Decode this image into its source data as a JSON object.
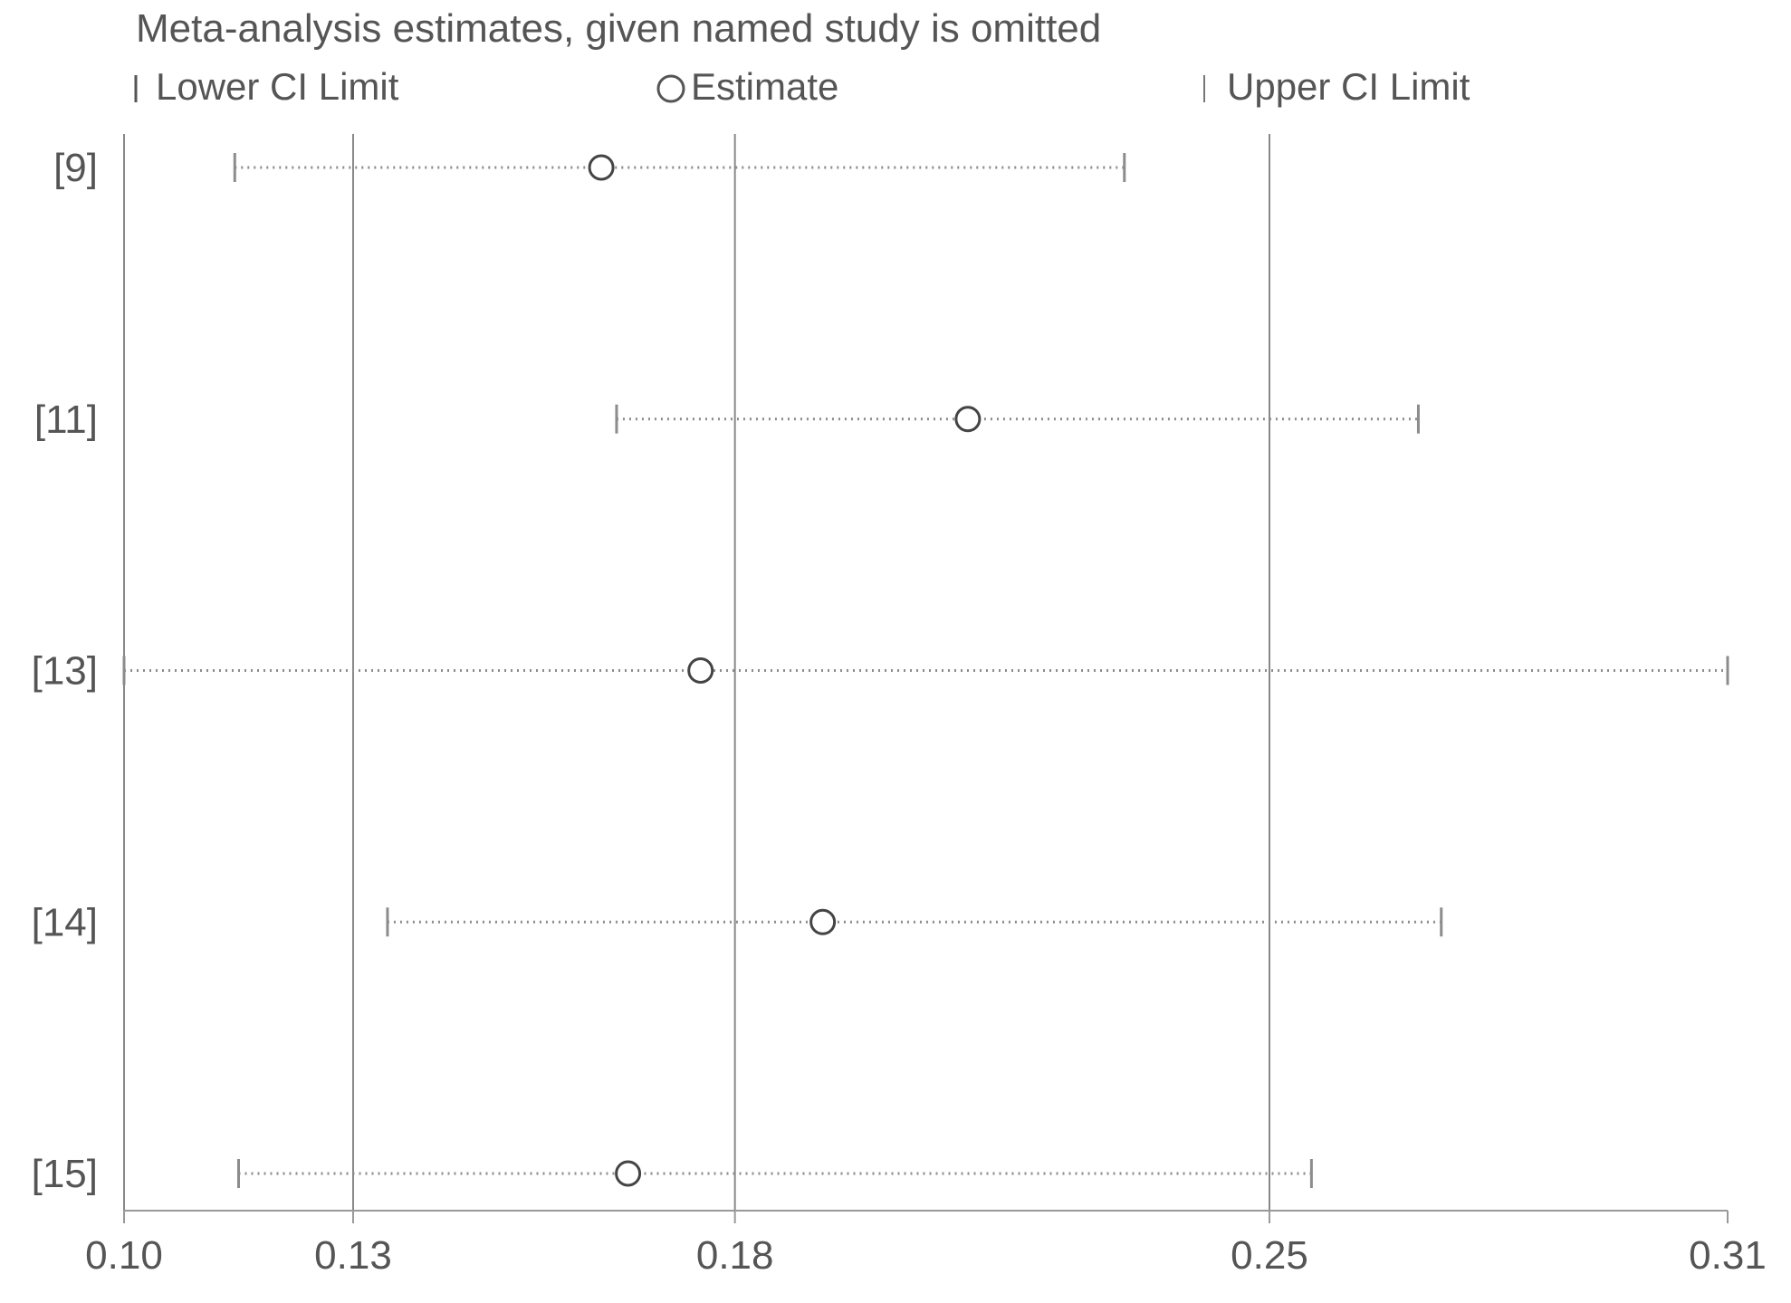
{
  "chart_data": {
    "type": "forest",
    "title": "Meta-analysis estimates, given named study is omitted",
    "legend": {
      "lower": "Lower CI Limit",
      "estimate": "Estimate",
      "upper": "Upper CI Limit",
      "placement": "top"
    },
    "xlim": [
      0.1,
      0.31
    ],
    "xticks": [
      0.1,
      0.13,
      0.18,
      0.25,
      0.31
    ],
    "xtick_labels": [
      "0.10",
      "0.13",
      "0.18",
      "0.25",
      "0.31"
    ],
    "gridlines_at": [
      0.1,
      0.13,
      0.18,
      0.25
    ],
    "studies": [
      {
        "label": "[9]",
        "lower": 0.1145,
        "estimate": 0.1625,
        "upper": 0.231
      },
      {
        "label": "[11]",
        "lower": 0.1645,
        "estimate": 0.2105,
        "upper": 0.2695
      },
      {
        "label": "[13]",
        "lower": 0.1,
        "estimate": 0.1755,
        "upper": 0.31
      },
      {
        "label": "[14]",
        "lower": 0.1345,
        "estimate": 0.1915,
        "upper": 0.2725
      },
      {
        "label": "[15]",
        "lower": 0.115,
        "estimate": 0.166,
        "upper": 0.2555
      }
    ],
    "colors": {
      "axis": "#999999",
      "grid": "#888888",
      "ci_line": "#8c8c8c",
      "marker": "#444444",
      "text": "#555555"
    }
  }
}
